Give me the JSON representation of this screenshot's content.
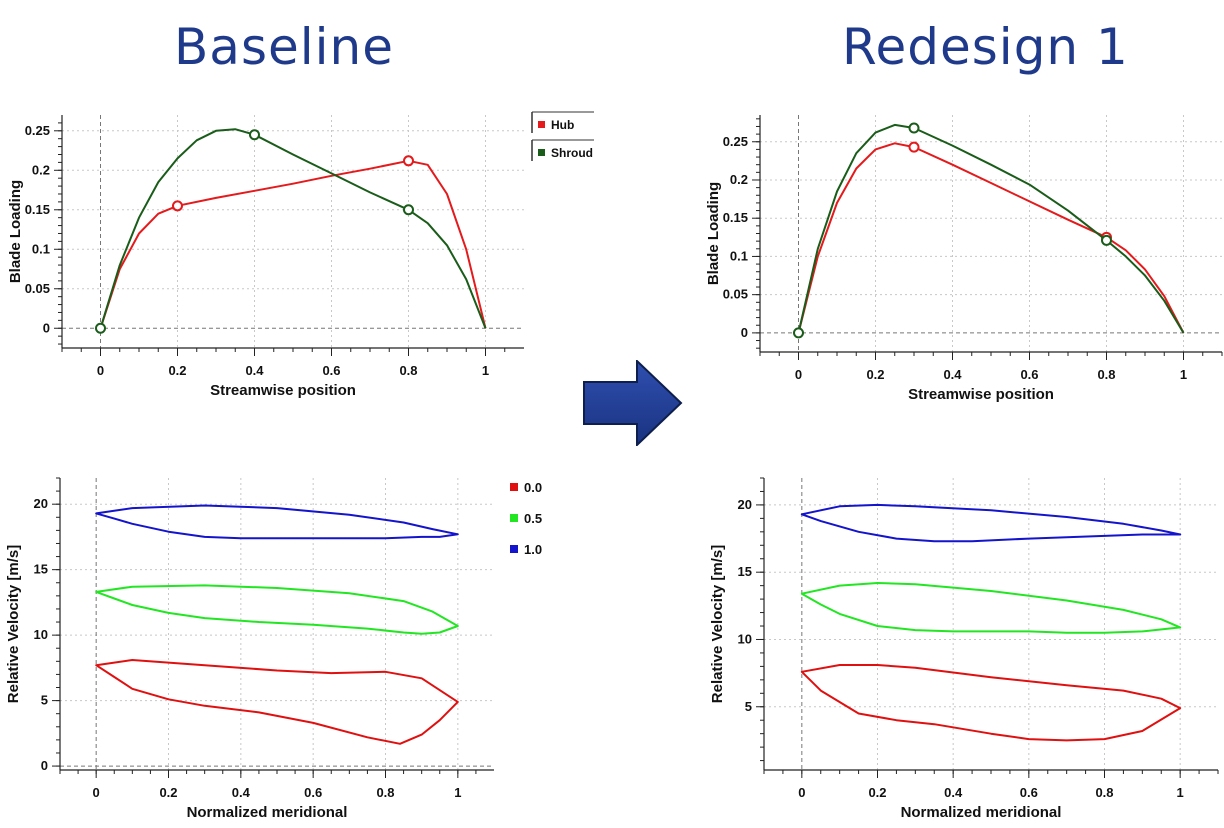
{
  "titles": {
    "left": "Baseline",
    "right": "Redesign 1"
  },
  "colors": {
    "title": "#1f3a8a",
    "hub": "#e41a1c",
    "shroud": "#1a5c1a",
    "span0": "#e01010",
    "span05": "#22e622",
    "span1": "#1414cc",
    "arrow": "#1f3a8a"
  },
  "chart_data": [
    {
      "id": "baseline-loading",
      "type": "line",
      "title": "Baseline",
      "xlabel": "Streamwise position",
      "ylabel": "Blade Loading",
      "xlim": [
        -0.1,
        1.1
      ],
      "ylim": [
        -0.025,
        0.27
      ],
      "xticks": [
        0,
        0.2,
        0.4,
        0.6,
        0.8,
        1
      ],
      "xtick_labels": [
        "0",
        "0.2",
        "0.4",
        "0.6",
        "0.8",
        "1"
      ],
      "yticks": [
        0,
        0.05,
        0.1,
        0.15,
        0.2,
        0.25
      ],
      "ytick_labels": [
        "0",
        "0.05",
        "0.1",
        "0.15",
        "0.2",
        "0.25"
      ],
      "legend": [
        "Hub",
        "Shroud"
      ],
      "series": [
        {
          "name": "Hub",
          "x": [
            0,
            0.05,
            0.1,
            0.15,
            0.2,
            0.3,
            0.4,
            0.5,
            0.6,
            0.7,
            0.8,
            0.85,
            0.9,
            0.95,
            1.0
          ],
          "y": [
            0,
            0.075,
            0.12,
            0.145,
            0.155,
            0.165,
            0.174,
            0.183,
            0.193,
            0.202,
            0.212,
            0.207,
            0.17,
            0.1,
            0
          ],
          "markers": [
            [
              0.2,
              0.155
            ],
            [
              0.8,
              0.212
            ]
          ]
        },
        {
          "name": "Shroud",
          "x": [
            0,
            0.05,
            0.1,
            0.15,
            0.2,
            0.25,
            0.3,
            0.35,
            0.4,
            0.5,
            0.6,
            0.7,
            0.8,
            0.85,
            0.9,
            0.95,
            1.0
          ],
          "y": [
            0,
            0.08,
            0.14,
            0.185,
            0.215,
            0.238,
            0.25,
            0.252,
            0.245,
            0.22,
            0.196,
            0.172,
            0.15,
            0.133,
            0.105,
            0.062,
            0
          ],
          "markers": [
            [
              0,
              0
            ],
            [
              0.4,
              0.245
            ],
            [
              0.8,
              0.15
            ]
          ]
        }
      ]
    },
    {
      "id": "redesign-loading",
      "type": "line",
      "title": "Redesign 1",
      "xlabel": "Streamwise position",
      "ylabel": "Blade Loading",
      "xlim": [
        -0.1,
        1.1
      ],
      "ylim": [
        -0.025,
        0.285
      ],
      "xticks": [
        0,
        0.2,
        0.4,
        0.6,
        0.8,
        1
      ],
      "xtick_labels": [
        "0",
        "0.2",
        "0.4",
        "0.6",
        "0.8",
        "1"
      ],
      "yticks": [
        0,
        0.05,
        0.1,
        0.15,
        0.2,
        0.25
      ],
      "ytick_labels": [
        "0",
        "0.05",
        "0.1",
        "0.15",
        "0.2",
        "0.25"
      ],
      "series": [
        {
          "name": "Hub",
          "x": [
            0,
            0.05,
            0.1,
            0.15,
            0.2,
            0.25,
            0.3,
            0.4,
            0.5,
            0.6,
            0.7,
            0.8,
            0.85,
            0.9,
            0.95,
            1.0
          ],
          "y": [
            0,
            0.1,
            0.17,
            0.215,
            0.24,
            0.248,
            0.243,
            0.22,
            0.196,
            0.172,
            0.148,
            0.125,
            0.108,
            0.083,
            0.048,
            0
          ],
          "markers": [
            [
              0.3,
              0.243
            ],
            [
              0.8,
              0.125
            ]
          ]
        },
        {
          "name": "Shroud",
          "x": [
            0,
            0.05,
            0.1,
            0.15,
            0.2,
            0.25,
            0.3,
            0.4,
            0.5,
            0.6,
            0.7,
            0.8,
            0.85,
            0.9,
            0.95,
            1.0
          ],
          "y": [
            0,
            0.11,
            0.185,
            0.235,
            0.262,
            0.272,
            0.268,
            0.245,
            0.22,
            0.194,
            0.16,
            0.121,
            0.1,
            0.075,
            0.042,
            0
          ],
          "markers": [
            [
              0,
              0
            ],
            [
              0.3,
              0.268
            ],
            [
              0.8,
              0.121
            ]
          ]
        }
      ]
    },
    {
      "id": "baseline-velocity",
      "type": "line",
      "xlabel": "Normalized meridional",
      "ylabel": "Relative Velocity [m/s]",
      "xlim": [
        -0.1,
        1.1
      ],
      "ylim": [
        -0.3,
        22
      ],
      "xticks": [
        0,
        0.2,
        0.4,
        0.6,
        0.8,
        1
      ],
      "xtick_labels": [
        "0",
        "0.2",
        "0.4",
        "0.6",
        "0.8",
        "1"
      ],
      "yticks": [
        0,
        5,
        10,
        15,
        20
      ],
      "ytick_labels": [
        "0",
        "5",
        "10",
        "15",
        "20"
      ],
      "legend": [
        "0.0",
        "0.5",
        "1.0"
      ],
      "series": [
        {
          "name": "0.0",
          "closed": true,
          "x": [
            0,
            0.1,
            0.3,
            0.5,
            0.65,
            0.8,
            0.9,
            1.0,
            0.95,
            0.9,
            0.84,
            0.75,
            0.6,
            0.45,
            0.3,
            0.2,
            0.1,
            0.05,
            0
          ],
          "y": [
            7.7,
            8.1,
            7.7,
            7.3,
            7.1,
            7.2,
            6.7,
            4.9,
            3.5,
            2.4,
            1.7,
            2.2,
            3.3,
            4.1,
            4.6,
            5.1,
            5.9,
            6.8,
            7.7
          ]
        },
        {
          "name": "0.5",
          "closed": true,
          "x": [
            0,
            0.1,
            0.3,
            0.5,
            0.7,
            0.85,
            0.93,
            1.0,
            0.95,
            0.9,
            0.85,
            0.75,
            0.6,
            0.45,
            0.3,
            0.2,
            0.1,
            0.05,
            0
          ],
          "y": [
            13.3,
            13.7,
            13.8,
            13.6,
            13.2,
            12.6,
            11.8,
            10.7,
            10.2,
            10.1,
            10.2,
            10.5,
            10.8,
            11.0,
            11.3,
            11.7,
            12.3,
            12.8,
            13.3
          ]
        },
        {
          "name": "1.0",
          "closed": true,
          "x": [
            0,
            0.1,
            0.3,
            0.5,
            0.7,
            0.85,
            0.93,
            1.0,
            0.95,
            0.9,
            0.8,
            0.6,
            0.4,
            0.3,
            0.2,
            0.1,
            0.05,
            0
          ],
          "y": [
            19.3,
            19.7,
            19.9,
            19.7,
            19.2,
            18.6,
            18.1,
            17.7,
            17.5,
            17.5,
            17.4,
            17.4,
            17.4,
            17.5,
            17.9,
            18.5,
            18.9,
            19.3
          ]
        }
      ]
    },
    {
      "id": "redesign-velocity",
      "type": "line",
      "xlabel": "Normalized meridional",
      "ylabel": "Relative Velocity [m/s]",
      "xlim": [
        -0.1,
        1.1
      ],
      "ylim": [
        0.3,
        22
      ],
      "xticks": [
        0,
        0.2,
        0.4,
        0.6,
        0.8,
        1
      ],
      "xtick_labels": [
        "0",
        "0.2",
        "0.4",
        "0.6",
        "0.8",
        "1"
      ],
      "yticks": [
        5,
        10,
        15,
        20
      ],
      "ytick_labels": [
        "5",
        "10",
        "15",
        "20"
      ],
      "series": [
        {
          "name": "0.0",
          "closed": true,
          "x": [
            0,
            0.1,
            0.2,
            0.3,
            0.5,
            0.7,
            0.85,
            0.95,
            1.0,
            0.9,
            0.8,
            0.7,
            0.6,
            0.5,
            0.35,
            0.25,
            0.15,
            0.05,
            0
          ],
          "y": [
            7.6,
            8.1,
            8.1,
            7.9,
            7.2,
            6.6,
            6.2,
            5.6,
            4.9,
            3.2,
            2.6,
            2.5,
            2.6,
            3.0,
            3.7,
            4.0,
            4.5,
            6.2,
            7.6
          ]
        },
        {
          "name": "0.5",
          "closed": true,
          "x": [
            0,
            0.1,
            0.2,
            0.3,
            0.5,
            0.7,
            0.85,
            0.95,
            1.0,
            0.9,
            0.8,
            0.7,
            0.6,
            0.4,
            0.3,
            0.2,
            0.1,
            0.05,
            0
          ],
          "y": [
            13.4,
            14.0,
            14.2,
            14.1,
            13.6,
            12.9,
            12.2,
            11.5,
            10.9,
            10.6,
            10.5,
            10.5,
            10.6,
            10.6,
            10.7,
            11.0,
            11.9,
            12.6,
            13.4
          ]
        },
        {
          "name": "1.0",
          "closed": true,
          "x": [
            0,
            0.1,
            0.2,
            0.3,
            0.5,
            0.7,
            0.85,
            0.95,
            1.0,
            0.9,
            0.8,
            0.6,
            0.45,
            0.35,
            0.25,
            0.15,
            0.05,
            0
          ],
          "y": [
            19.3,
            19.9,
            20.0,
            19.9,
            19.6,
            19.1,
            18.6,
            18.1,
            17.8,
            17.8,
            17.7,
            17.5,
            17.3,
            17.3,
            17.5,
            18.0,
            18.8,
            19.3
          ]
        }
      ]
    }
  ]
}
